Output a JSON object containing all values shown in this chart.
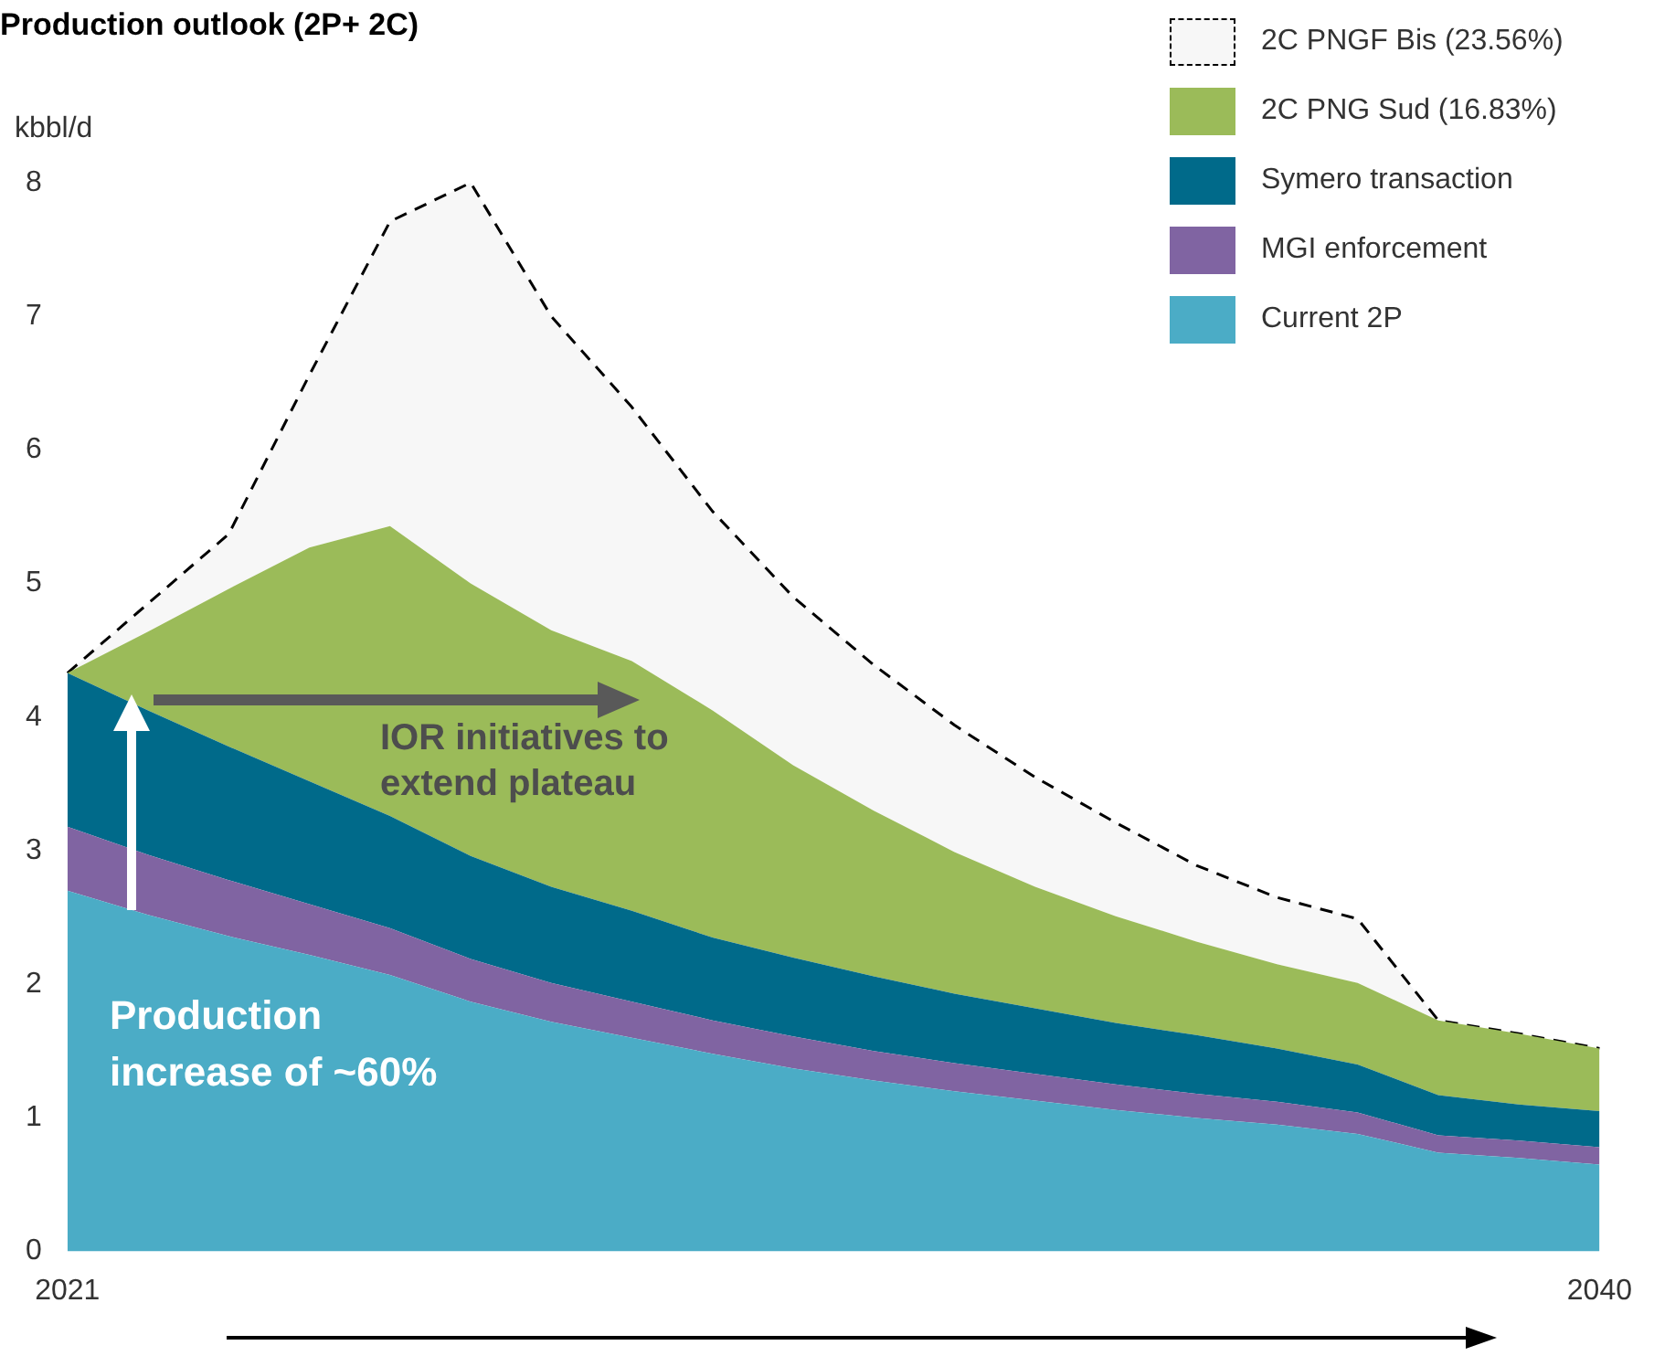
{
  "chart_data": {
    "type": "area",
    "title": "Production outlook (2P+ 2C)",
    "ylabel": "kbbl/d",
    "stacked": true,
    "legend": "top right",
    "grid": false,
    "marker": "none",
    "categories": [
      "2021",
      null,
      null,
      null,
      null,
      null,
      null,
      null,
      null,
      null,
      null,
      null,
      null,
      null,
      null,
      null,
      null,
      null,
      null,
      "2040"
    ],
    "ylim": [
      0,
      8
    ],
    "yticks": [
      0,
      1,
      2,
      3,
      4,
      5,
      6,
      7,
      8
    ],
    "series": [
      {
        "name": "Current 2P",
        "color": "#4bacc6",
        "values": [
          2.7,
          2.52,
          2.36,
          2.22,
          2.07,
          1.87,
          1.72,
          1.6,
          1.48,
          1.37,
          1.28,
          1.2,
          1.13,
          1.06,
          1.0,
          0.95,
          0.88,
          0.74,
          0.7,
          0.65
        ]
      },
      {
        "name": "MGI enforcement",
        "color": "#8064a2",
        "values": [
          0.48,
          0.45,
          0.42,
          0.38,
          0.35,
          0.32,
          0.29,
          0.27,
          0.25,
          0.24,
          0.22,
          0.21,
          0.2,
          0.19,
          0.18,
          0.17,
          0.16,
          0.13,
          0.13,
          0.13
        ]
      },
      {
        "name": "Symero transaction",
        "color": "#006a8a",
        "values": [
          1.15,
          1.08,
          1.0,
          0.92,
          0.84,
          0.77,
          0.72,
          0.68,
          0.62,
          0.59,
          0.56,
          0.52,
          0.49,
          0.46,
          0.44,
          0.4,
          0.36,
          0.3,
          0.27,
          0.27
        ]
      },
      {
        "name": "2C PNG Sud (16.83%)",
        "color": "#9bbb59",
        "values": [
          0,
          0.59,
          1.18,
          1.75,
          2.17,
          2.04,
          1.92,
          1.87,
          1.7,
          1.44,
          1.24,
          1.06,
          0.91,
          0.8,
          0.7,
          0.63,
          0.61,
          0.56,
          0.53,
          0.47
        ]
      },
      {
        "name": "2C PNGF  Bis (23.56%)",
        "color": "#f7f7f7",
        "line_style": "dashed",
        "values": [
          0,
          0.21,
          0.41,
          1.29,
          2.28,
          3.0,
          2.35,
          1.9,
          1.49,
          1.26,
          1.09,
          0.95,
          0.82,
          0.7,
          0.57,
          0.5,
          0.48,
          0,
          0,
          0
        ]
      }
    ],
    "annotations": [
      "IOR initiatives to extend plateau",
      "Production increase of ~60%"
    ]
  }
}
